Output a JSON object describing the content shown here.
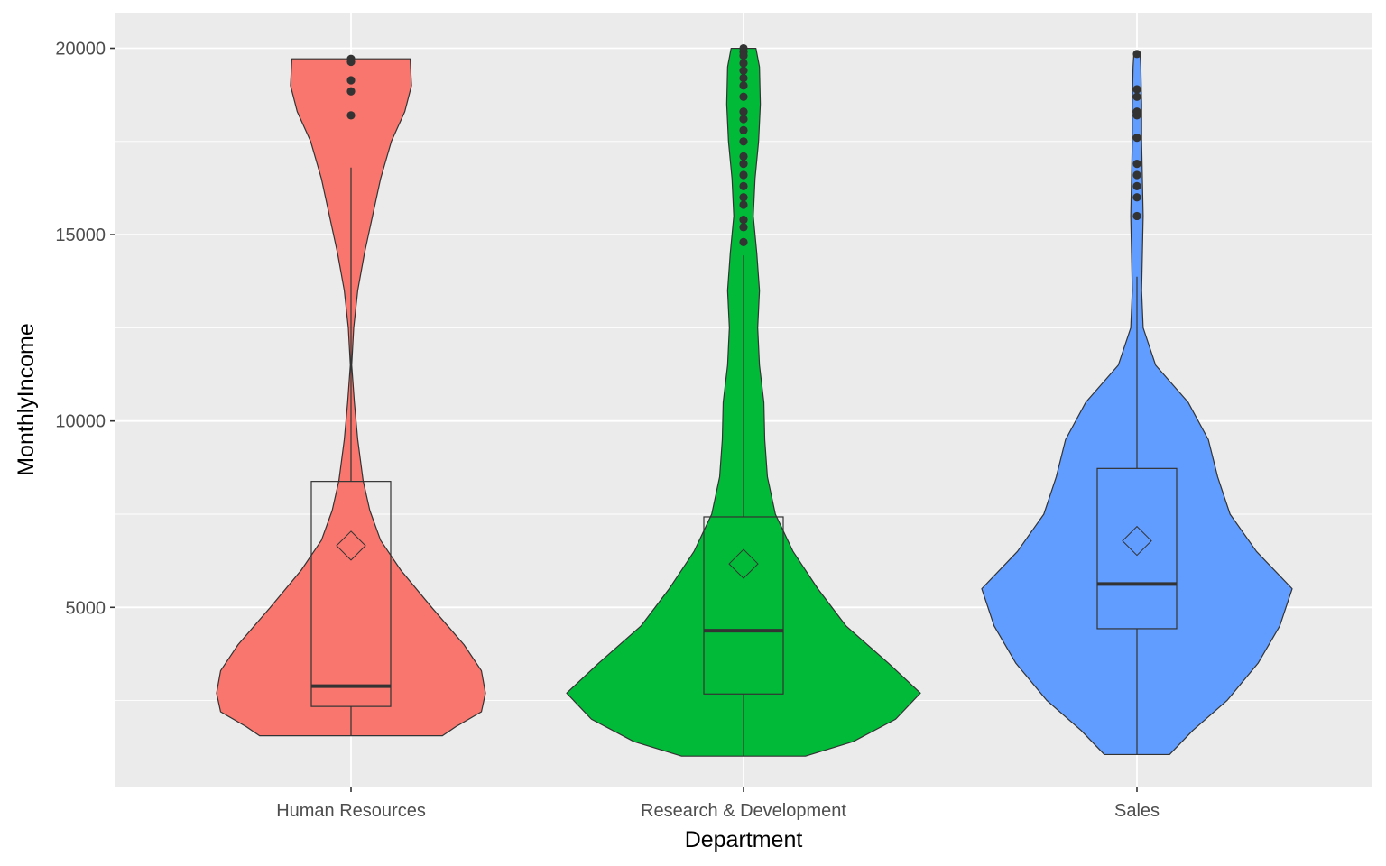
{
  "chart_data": {
    "type": "violin",
    "xlabel": "Department",
    "ylabel": "MonthlyIncome",
    "ylim": [
      1009,
      20000
    ],
    "yticks": [
      5000,
      10000,
      15000,
      20000
    ],
    "categories": [
      "Human Resources",
      "Research & Development",
      "Sales"
    ],
    "colors": [
      "#F8766D",
      "#00BA38",
      "#619CFF"
    ],
    "background": "#EBEBEB",
    "grid": true,
    "legend": "none",
    "series": [
      {
        "min": 1555,
        "max": 19717,
        "q1": 2342,
        "median": 2886,
        "q3": 8380,
        "mean": 6655,
        "whisker_low": 1555,
        "whisker_high": 16799,
        "outliers": [
          18200,
          18844,
          19141,
          19636,
          19717
        ],
        "density": [
          [
            1555,
            0.68
          ],
          [
            1800,
            0.78
          ],
          [
            2200,
            0.97
          ],
          [
            2700,
            1.0
          ],
          [
            3300,
            0.97
          ],
          [
            4000,
            0.84
          ],
          [
            5000,
            0.6
          ],
          [
            6000,
            0.37
          ],
          [
            6800,
            0.22
          ],
          [
            7600,
            0.14
          ],
          [
            8400,
            0.09
          ],
          [
            9500,
            0.05
          ],
          [
            10500,
            0.025
          ],
          [
            11500,
            0.005
          ],
          [
            12500,
            0.02
          ],
          [
            13500,
            0.05
          ],
          [
            14500,
            0.1
          ],
          [
            15500,
            0.16
          ],
          [
            16500,
            0.22
          ],
          [
            17500,
            0.3
          ],
          [
            18300,
            0.4
          ],
          [
            19000,
            0.45
          ],
          [
            19717,
            0.44
          ]
        ]
      },
      {
        "min": 1009,
        "max": 19999,
        "q1": 2677,
        "median": 4374,
        "q3": 7428,
        "mean": 6167,
        "whisker_low": 1009,
        "whisker_high": 14444,
        "outliers": [
          14800,
          15200,
          15400,
          15800,
          16000,
          16300,
          16600,
          16900,
          17100,
          17500,
          17800,
          18100,
          18300,
          18700,
          19000,
          19200,
          19400,
          19600,
          19800,
          19900,
          19999
        ],
        "density": [
          [
            1009,
            0.35
          ],
          [
            1400,
            0.62
          ],
          [
            2000,
            0.86
          ],
          [
            2700,
            1.0
          ],
          [
            3500,
            0.82
          ],
          [
            4500,
            0.58
          ],
          [
            5500,
            0.42
          ],
          [
            6500,
            0.28
          ],
          [
            7500,
            0.18
          ],
          [
            8500,
            0.135
          ],
          [
            9500,
            0.12
          ],
          [
            10500,
            0.115
          ],
          [
            11500,
            0.09
          ],
          [
            12500,
            0.08
          ],
          [
            13500,
            0.09
          ],
          [
            14500,
            0.075
          ],
          [
            15500,
            0.055
          ],
          [
            16500,
            0.065
          ],
          [
            17500,
            0.085
          ],
          [
            18500,
            0.095
          ],
          [
            19500,
            0.09
          ],
          [
            19999,
            0.07
          ]
        ]
      },
      {
        "min": 1052,
        "max": 19847,
        "q1": 4428,
        "median": 5628,
        "q3": 8726,
        "mean": 6784,
        "whisker_low": 1052,
        "whisker_high": 13872,
        "outliers": [
          15500,
          16000,
          16300,
          16600,
          16900,
          17600,
          18200,
          18300,
          18700,
          18900,
          19847
        ],
        "density": [
          [
            1052,
            0.21
          ],
          [
            1700,
            0.36
          ],
          [
            2500,
            0.58
          ],
          [
            3500,
            0.78
          ],
          [
            4500,
            0.92
          ],
          [
            5500,
            1.0
          ],
          [
            6500,
            0.77
          ],
          [
            7500,
            0.6
          ],
          [
            8500,
            0.52
          ],
          [
            9500,
            0.46
          ],
          [
            10500,
            0.33
          ],
          [
            11500,
            0.12
          ],
          [
            12500,
            0.04
          ],
          [
            13500,
            0.03
          ],
          [
            14500,
            0.035
          ],
          [
            15500,
            0.04
          ],
          [
            16500,
            0.035
          ],
          [
            17500,
            0.03
          ],
          [
            18500,
            0.03
          ],
          [
            19500,
            0.025
          ],
          [
            19847,
            0.02
          ]
        ]
      }
    ]
  }
}
